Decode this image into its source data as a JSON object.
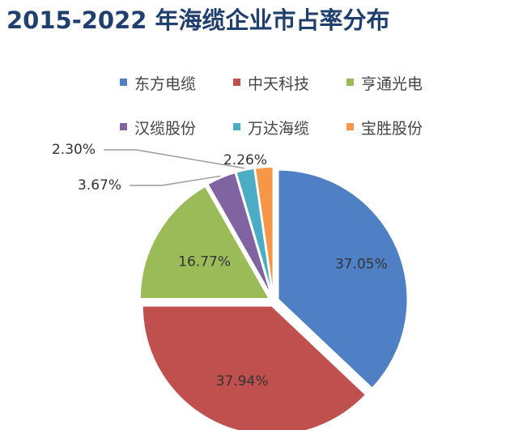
{
  "chart_data": {
    "type": "pie",
    "title": "2015-2022 年海缆企业市占率分布",
    "legend_placement": "top-right",
    "slices": [
      {
        "name": "东方电缆",
        "value": 37.05,
        "label": "37.05%",
        "color": "#4f7fc4"
      },
      {
        "name": "中天科技",
        "value": 37.94,
        "label": "37.94%",
        "color": "#c0504d"
      },
      {
        "name": "亨通光电",
        "value": 16.77,
        "label": "16.77%",
        "color": "#9bbb59"
      },
      {
        "name": "汉缆股份",
        "value": 3.67,
        "label": "3.67%",
        "color": "#8064a2"
      },
      {
        "name": "万达海缆",
        "value": 2.3,
        "label": "2.30%",
        "color": "#4bacc6"
      },
      {
        "name": "宝胜股份",
        "value": 2.26,
        "label": "2.26%",
        "color": "#f79646"
      }
    ]
  }
}
